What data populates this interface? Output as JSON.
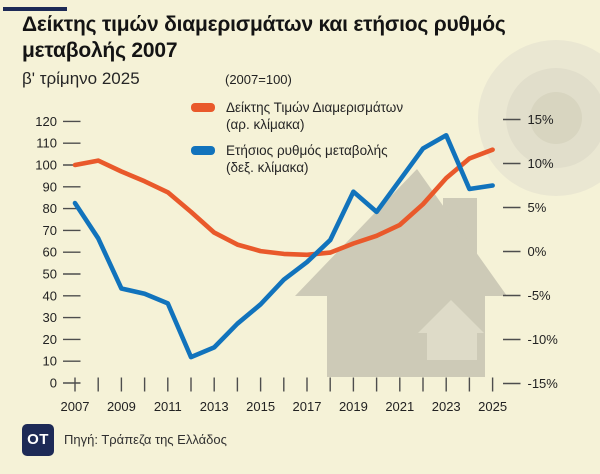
{
  "colors": {
    "background": "#f5f2d7",
    "accent_navy": "#1d2a56",
    "price_index_orange": "#e9592b",
    "annual_change_blue": "#1173bc"
  },
  "header": {
    "title_line1": "Δείκτης τιμών διαμερισμάτων και ετήσιος ρυθμός",
    "title_line2": "μεταβολής 2007",
    "subtitle": "β' τρίμηνο 2025"
  },
  "legend": {
    "note": "(2007=100)",
    "items": [
      {
        "swatch_color": "#e9592b",
        "label": "Δείκτης Τιμών Διαμερισμάτων",
        "sublabel": "(αρ. κλίμακα)"
      },
      {
        "swatch_color": "#1173bc",
        "label": "Ετήσιος ρυθμός μεταβολής",
        "sublabel": "(δεξ. κλίμακα)"
      }
    ]
  },
  "footer": {
    "logo_text": "OT",
    "source": "Πηγή: Τράπεζα της Ελλάδος"
  },
  "chart_data": {
    "type": "line",
    "title": "Δείκτης τιμών διαμερισμάτων και ετήσιος ρυθμός μεταβολής 2007",
    "subtitle": "β' τρίμηνο 2025",
    "note": "(2007=100)",
    "x": [
      2007,
      2008,
      2009,
      2010,
      2011,
      2012,
      2013,
      2014,
      2015,
      2016,
      2017,
      2018,
      2019,
      2020,
      2021,
      2022,
      2023,
      2024,
      2025
    ],
    "x_tick_labels": [
      "2007",
      "2009",
      "2011",
      "2013",
      "2015",
      "2017",
      "2019",
      "2021",
      "2023",
      "2025"
    ],
    "series": [
      {
        "name": "Δείκτης Τιμών Διαμερισμάτων (αρ. κλίμακα)",
        "axis": "left",
        "color": "#e9592b",
        "values": [
          100,
          102,
          97,
          92.5,
          87.5,
          78.5,
          69,
          63.5,
          60.5,
          59.2,
          58.8,
          59.8,
          64,
          67.5,
          72.5,
          82,
          94,
          103,
          107
        ]
      },
      {
        "name": "Ετήσιος ρυθμός μεταβολής (δεξ. κλίμακα)",
        "axis": "right",
        "color": "#1173bc",
        "values": [
          5.5,
          1.5,
          -4.2,
          -4.8,
          -5.9,
          -12,
          -10.9,
          -8.2,
          -6,
          -3.2,
          -1.2,
          1.3,
          6.8,
          4.5,
          8.1,
          11.7,
          13.2,
          7.1,
          7.5
        ]
      }
    ],
    "left_axis": {
      "min": 0,
      "max": 120,
      "step": 10,
      "ticks": [
        0,
        10,
        20,
        30,
        40,
        50,
        60,
        70,
        80,
        90,
        100,
        110,
        120
      ],
      "tick_labels": [
        "0",
        "10",
        "20",
        "30",
        "40",
        "50",
        "60",
        "70",
        "80",
        "90",
        "100",
        "110",
        "120"
      ]
    },
    "right_axis": {
      "min": -15,
      "max": 15,
      "step": 5,
      "ticks": [
        -15,
        -10,
        -5,
        0,
        5,
        10,
        15
      ],
      "tick_labels": [
        "-15%",
        "-10%",
        "-5%",
        "0%",
        "5%",
        "10%",
        "15%"
      ]
    },
    "grid": false,
    "legend_position": "top"
  }
}
